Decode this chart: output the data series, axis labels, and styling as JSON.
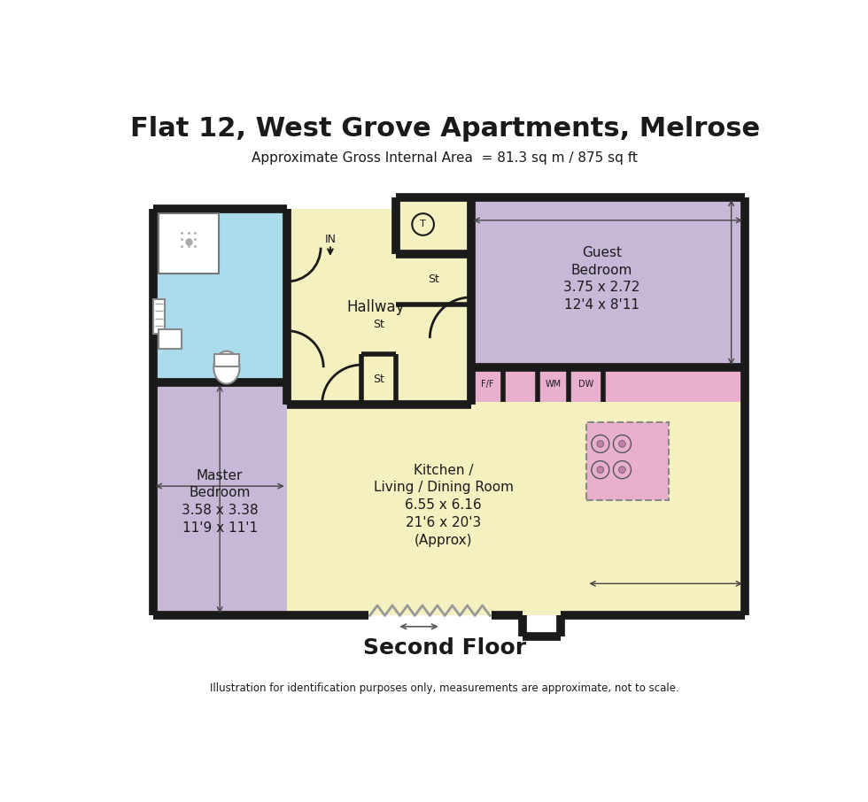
{
  "title": "Flat 12, West Grove Apartments, Melrose",
  "subtitle": "Approximate Gross Internal Area  = 81.3 sq m / 875 sq ft",
  "floor_label": "Second Floor",
  "footnote": "Illustration for identification purposes only, measurements are approximate, not to scale.",
  "bg_color": "#ffffff",
  "wall_color": "#1a1a1a",
  "hallway_color": "#f5f0c0",
  "master_bed_color": "#c8b8d8",
  "guest_bed_color": "#c8b8d8",
  "bath_color": "#aadcec",
  "kitchen_color": "#f5f0c0",
  "appliance_color": "#e8b0cc",
  "wall_lw": 7,
  "inner_lw": 4
}
